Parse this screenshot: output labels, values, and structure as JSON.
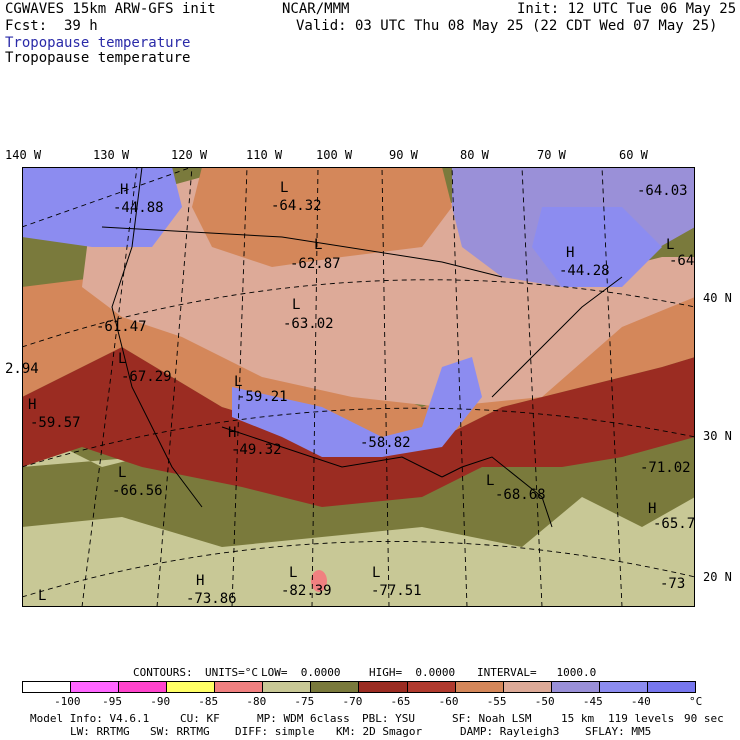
{
  "header": {
    "model": "CGWAVES 15km ARW-GFS init",
    "org": "NCAR/MMM",
    "init": "Init: 12 UTC Tue 06 May 25",
    "fcst_label": "Fcst:",
    "fcst_value": "39 h",
    "valid": "Valid: 03 UTC Thu 08 May 25 (22 CDT Wed 07 May 25)",
    "field_blue": "Tropopause temperature",
    "field_black": "Tropopause temperature"
  },
  "axes": {
    "lon_labels": [
      "140 W",
      "130 W",
      "120 W",
      "110 W",
      "100 W",
      "90 W",
      "80 W",
      "70 W",
      "60 W"
    ],
    "lat_labels": [
      "40 N",
      "30 N",
      "20 N"
    ]
  },
  "map": {
    "highs_lows": [
      {
        "kind": "H",
        "value": "-44.88"
      },
      {
        "kind": "L",
        "value": "-64.32"
      },
      {
        "kind": "L",
        "value": "-62.87"
      },
      {
        "kind": "L",
        "value": "-63.02"
      },
      {
        "kind": "",
        "value": "-61.47"
      },
      {
        "kind": "",
        "value": "2.94"
      },
      {
        "kind": "L",
        "value": "-67.29"
      },
      {
        "kind": "H",
        "value": "-59.57"
      },
      {
        "kind": "L",
        "value": "-59.21"
      },
      {
        "kind": "H",
        "value": "-49.32"
      },
      {
        "kind": "L",
        "value": "-66.56"
      },
      {
        "kind": "",
        "value": "-58.82"
      },
      {
        "kind": "L",
        "value": "-68.68"
      },
      {
        "kind": "H",
        "value": "-44.28"
      },
      {
        "kind": "",
        "value": "-64.03"
      },
      {
        "kind": "L",
        "value": "-64"
      },
      {
        "kind": "",
        "value": "-71.02"
      },
      {
        "kind": "H",
        "value": "-65.7"
      },
      {
        "kind": "H",
        "value": "-73.86"
      },
      {
        "kind": "L",
        "value": "-82.39"
      },
      {
        "kind": "L",
        "value": "-77.51"
      },
      {
        "kind": "L",
        "value": ""
      },
      {
        "kind": "",
        "value": "-73"
      }
    ]
  },
  "contours_line": {
    "label": "CONTOURS:",
    "units": "UNITS=°C",
    "low": "LOW=  0.0000",
    "high": "HIGH=  0.0000",
    "interval": "INTERVAL=   1000.0"
  },
  "colorbar": {
    "colors": [
      "#ffffff",
      "#ff66ff",
      "#ff44cc",
      "#ffff66",
      "#f08080",
      "#c8c896",
      "#7a7a3c",
      "#9b2c22",
      "#b03a2e",
      "#d4875a",
      "#ddaa98",
      "#9a90d8",
      "#8c8cf0",
      "#7777ee"
    ],
    "labels": [
      "-100",
      "-95",
      "-90",
      "-85",
      "-80",
      "-75",
      "-70",
      "-65",
      "-60",
      "-55",
      "-50",
      "-45",
      "-40"
    ],
    "unit": "°C"
  },
  "footer": {
    "line1": [
      "Model Info: V4.6.1",
      "CU: KF",
      "MP: WDM 6class",
      "PBL: YSU",
      "SF: Noah LSM",
      "15 km",
      "119 levels",
      "90 sec"
    ],
    "line2": [
      "LW: RRTMG",
      "SW: RRTMG",
      "DIFF: simple",
      "KM: 2D Smagor",
      "DAMP: Rayleigh3",
      "SFLAY: MM5"
    ]
  }
}
